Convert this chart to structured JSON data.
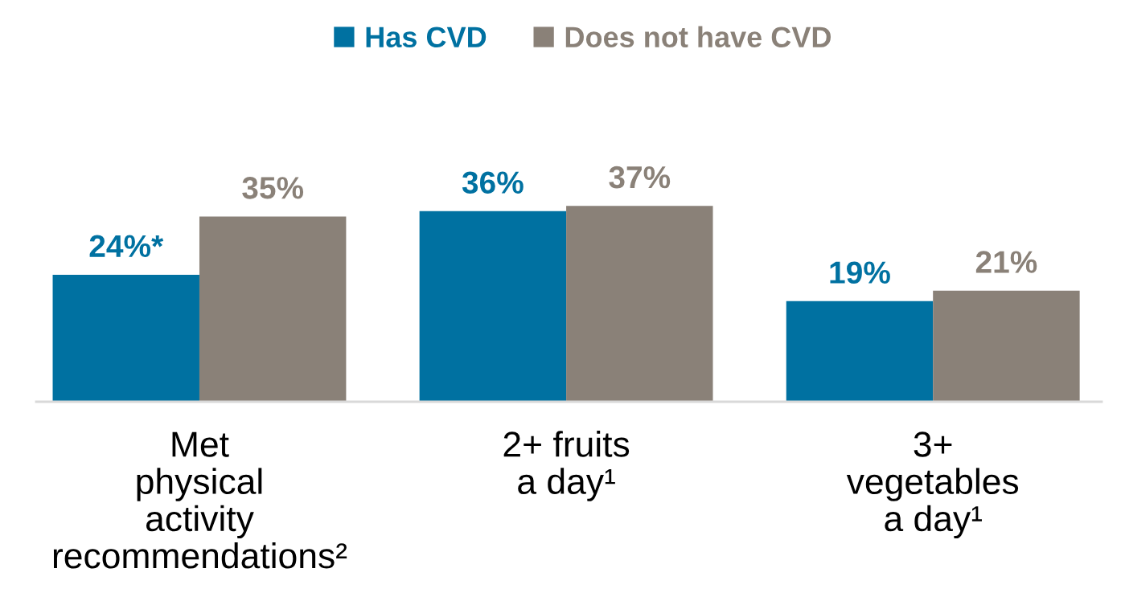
{
  "chart_data": {
    "type": "bar",
    "categories": [
      "Met\nphysical\nactivity\nrecommendations²",
      "2+ fruits\na day¹",
      "3+\nvegetables\na day¹"
    ],
    "series": [
      {
        "name": "Has CVD",
        "color": "#0071a1",
        "values": [
          24,
          36,
          19
        ],
        "value_labels": [
          "24%*",
          "36%",
          "19%"
        ]
      },
      {
        "name": "Does not have CVD",
        "color": "#8a8178",
        "values": [
          35,
          37,
          21
        ],
        "value_labels": [
          "35%",
          "37%",
          "21%"
        ]
      }
    ],
    "legend": "top",
    "grid": false,
    "tick_labels": "x"
  }
}
